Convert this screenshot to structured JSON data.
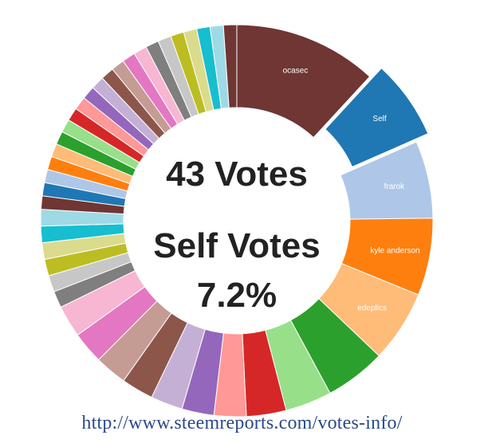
{
  "chart_data": {
    "type": "pie",
    "donut": true,
    "center_text": [
      "43 Votes",
      "Self Votes",
      "7.2%"
    ],
    "slices": [
      {
        "label": "ocasec",
        "value": 13.0,
        "color": "#6f3633",
        "exploded": false
      },
      {
        "label": "Self",
        "value": 7.2,
        "color": "#1f77b4",
        "exploded": true
      },
      {
        "label": "frarok",
        "value": 7.0,
        "color": "#aec7e8",
        "exploded": false
      },
      {
        "label": "kyle anderson",
        "value": 7.0,
        "color": "#ff7f0e",
        "exploded": false
      },
      {
        "label": "edeplics",
        "value": 6.5,
        "color": "#ffbb78",
        "exploded": false
      },
      {
        "label": "",
        "value": 5.5,
        "color": "#2ca02c",
        "exploded": false
      },
      {
        "label": "",
        "value": 4.2,
        "color": "#98df8a",
        "exploded": false
      },
      {
        "label": "",
        "value": 3.6,
        "color": "#d62728",
        "exploded": false
      },
      {
        "label": "",
        "value": 2.9,
        "color": "#ff9896",
        "exploded": false
      },
      {
        "label": "",
        "value": 2.9,
        "color": "#9467bd",
        "exploded": false
      },
      {
        "label": "",
        "value": 2.9,
        "color": "#c5b0d5",
        "exploded": false
      },
      {
        "label": "",
        "value": 2.9,
        "color": "#8c564b",
        "exploded": false
      },
      {
        "label": "",
        "value": 2.9,
        "color": "#c49c94",
        "exploded": false
      },
      {
        "label": "",
        "value": 2.9,
        "color": "#e377c2",
        "exploded": false
      },
      {
        "label": "",
        "value": 2.9,
        "color": "#f7b6d2",
        "exploded": false
      },
      {
        "label": "",
        "value": 1.5,
        "color": "#7f7f7f",
        "exploded": false
      },
      {
        "label": "",
        "value": 1.5,
        "color": "#c7c7c7",
        "exploded": false
      },
      {
        "label": "",
        "value": 1.5,
        "color": "#bcbd22",
        "exploded": false
      },
      {
        "label": "",
        "value": 1.5,
        "color": "#dbdb8d",
        "exploded": false
      },
      {
        "label": "",
        "value": 1.5,
        "color": "#17becf",
        "exploded": false
      },
      {
        "label": "",
        "value": 1.5,
        "color": "#9edae5",
        "exploded": false
      },
      {
        "label": "",
        "value": 1.2,
        "color": "#6f3633",
        "exploded": false
      },
      {
        "label": "",
        "value": 1.2,
        "color": "#1f77b4",
        "exploded": false
      },
      {
        "label": "",
        "value": 1.2,
        "color": "#aec7e8",
        "exploded": false
      },
      {
        "label": "",
        "value": 1.2,
        "color": "#ff7f0e",
        "exploded": false
      },
      {
        "label": "",
        "value": 1.2,
        "color": "#ffbb78",
        "exploded": false
      },
      {
        "label": "",
        "value": 1.2,
        "color": "#2ca02c",
        "exploded": false
      },
      {
        "label": "",
        "value": 1.2,
        "color": "#98df8a",
        "exploded": false
      },
      {
        "label": "",
        "value": 1.2,
        "color": "#d62728",
        "exploded": false
      },
      {
        "label": "",
        "value": 1.2,
        "color": "#ff9896",
        "exploded": false
      },
      {
        "label": "",
        "value": 1.2,
        "color": "#9467bd",
        "exploded": false
      },
      {
        "label": "",
        "value": 1.2,
        "color": "#c5b0d5",
        "exploded": false
      },
      {
        "label": "",
        "value": 1.2,
        "color": "#8c564b",
        "exploded": false
      },
      {
        "label": "",
        "value": 1.2,
        "color": "#c49c94",
        "exploded": false
      },
      {
        "label": "",
        "value": 1.2,
        "color": "#e377c2",
        "exploded": false
      },
      {
        "label": "",
        "value": 1.2,
        "color": "#f7b6d2",
        "exploded": false
      },
      {
        "label": "",
        "value": 1.2,
        "color": "#7f7f7f",
        "exploded": false
      },
      {
        "label": "",
        "value": 1.2,
        "color": "#c7c7c7",
        "exploded": false
      },
      {
        "label": "",
        "value": 1.2,
        "color": "#bcbd22",
        "exploded": false
      },
      {
        "label": "",
        "value": 1.2,
        "color": "#dbdb8d",
        "exploded": false
      },
      {
        "label": "",
        "value": 1.2,
        "color": "#17becf",
        "exploded": false
      },
      {
        "label": "",
        "value": 1.2,
        "color": "#9edae5",
        "exploded": false
      },
      {
        "label": "",
        "value": 1.2,
        "color": "#6f3633",
        "exploded": false
      }
    ]
  },
  "footer": {
    "source_url": "http://www.steemreports.com/votes-info/"
  }
}
